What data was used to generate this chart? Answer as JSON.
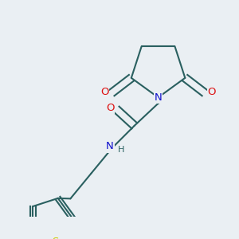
{
  "background_color": "#eaeff3",
  "bond_color": "#2a6060",
  "atom_colors": {
    "N": "#1010cc",
    "O": "#dd1010",
    "S": "#cccc00",
    "H": "#2a6060"
  },
  "lw": 1.5,
  "fs": 9.5
}
